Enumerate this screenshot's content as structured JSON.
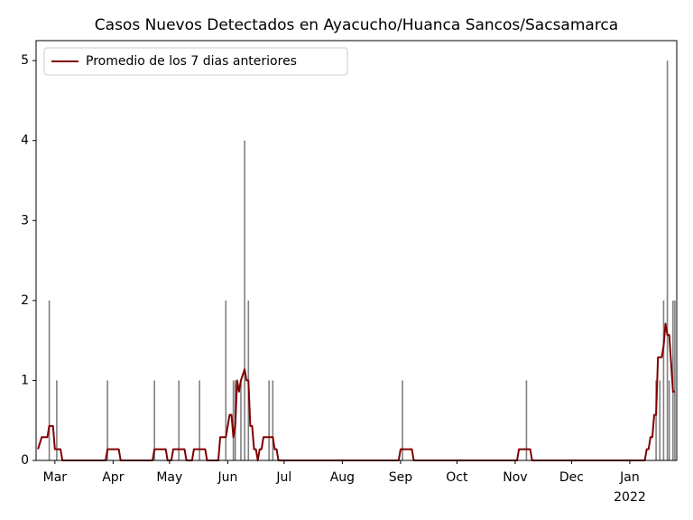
{
  "chart_data": {
    "type": "bar",
    "title": "Casos Nuevos Detectados en Ayacucho/Huanca Sancos/Sacsamarca",
    "xlim": [
      "2021-02-19",
      "2022-01-26"
    ],
    "ylim": [
      0,
      5.25
    ],
    "yticks": [
      0,
      1,
      2,
      3,
      4,
      5
    ],
    "xticks": [
      {
        "value": "2021-03-01",
        "label": "Mar"
      },
      {
        "value": "2021-04-01",
        "label": "Apr"
      },
      {
        "value": "2021-05-01",
        "label": "May"
      },
      {
        "value": "2021-06-01",
        "label": "Jun"
      },
      {
        "value": "2021-07-01",
        "label": "Jul"
      },
      {
        "value": "2021-08-01",
        "label": "Aug"
      },
      {
        "value": "2021-09-01",
        "label": "Sep"
      },
      {
        "value": "2021-10-01",
        "label": "Oct"
      },
      {
        "value": "2021-11-01",
        "label": "Nov"
      },
      {
        "value": "2021-12-01",
        "label": "Dec"
      },
      {
        "value": "2022-01-01",
        "label": "Jan",
        "sublabel": "2022"
      }
    ],
    "legend": "upper left",
    "series": [
      {
        "type": "bar",
        "color": "#808080",
        "x": [
          "2021-02-26",
          "2021-03-02",
          "2021-03-29",
          "2021-04-23",
          "2021-05-06",
          "2021-05-17",
          "2021-05-31",
          "2021-06-04",
          "2021-06-05",
          "2021-06-08",
          "2021-06-10",
          "2021-06-12",
          "2021-06-23",
          "2021-06-25",
          "2021-09-02",
          "2021-11-07",
          "2022-01-15",
          "2022-01-17",
          "2022-01-19",
          "2022-01-21",
          "2022-01-22",
          "2022-01-24",
          "2022-01-25"
        ],
        "values": [
          2,
          1,
          1,
          1,
          1,
          1,
          2,
          1,
          1,
          1,
          4,
          2,
          1,
          1,
          1,
          1,
          1,
          1,
          2,
          5,
          1,
          2,
          2
        ]
      },
      {
        "type": "line",
        "name": "Promedio de los 7 dias anteriores",
        "color": "#800000",
        "x": [
          "2021-02-20",
          "2021-02-22",
          "2021-02-25",
          "2021-02-26",
          "2021-02-28",
          "2021-03-01",
          "2021-03-04",
          "2021-03-05",
          "2021-03-28",
          "2021-03-29",
          "2021-04-04",
          "2021-04-05",
          "2021-04-22",
          "2021-04-23",
          "2021-04-29",
          "2021-04-30",
          "2021-05-02",
          "2021-05-03",
          "2021-05-09",
          "2021-05-10",
          "2021-05-13",
          "2021-05-14",
          "2021-05-20",
          "2021-05-21",
          "2021-05-27",
          "2021-05-28",
          "2021-05-31",
          "2021-06-01",
          "2021-06-02",
          "2021-06-03",
          "2021-06-04",
          "2021-06-05",
          "2021-06-06",
          "2021-06-07",
          "2021-06-08",
          "2021-06-10",
          "2021-06-11",
          "2021-06-12",
          "2021-06-13",
          "2021-06-14",
          "2021-06-15",
          "2021-06-16",
          "2021-06-17",
          "2021-06-18",
          "2021-06-19",
          "2021-06-20",
          "2021-06-25",
          "2021-06-26",
          "2021-06-27",
          "2021-06-28",
          "2021-08-31",
          "2021-09-01",
          "2021-09-07",
          "2021-09-08",
          "2021-11-02",
          "2021-11-03",
          "2021-11-09",
          "2021-11-10",
          "2022-01-09",
          "2022-01-10",
          "2022-01-11",
          "2022-01-12",
          "2022-01-13",
          "2022-01-14",
          "2022-01-15",
          "2022-01-16",
          "2022-01-18",
          "2022-01-19",
          "2022-01-20",
          "2022-01-21",
          "2022-01-22",
          "2022-01-24",
          "2022-01-25"
        ],
        "values": [
          0.14,
          0.29,
          0.29,
          0.43,
          0.43,
          0.14,
          0.14,
          0,
          0,
          0.14,
          0.14,
          0,
          0,
          0.14,
          0.14,
          0,
          0,
          0.14,
          0.14,
          0,
          0,
          0.14,
          0.14,
          0,
          0,
          0.29,
          0.29,
          0.43,
          0.57,
          0.57,
          0.29,
          0.43,
          1.0,
          0.86,
          1.0,
          1.14,
          1.0,
          1.0,
          0.43,
          0.43,
          0.14,
          0.14,
          0,
          0.14,
          0.14,
          0.29,
          0.29,
          0.14,
          0.14,
          0,
          0,
          0.14,
          0.14,
          0,
          0,
          0.14,
          0.14,
          0,
          0,
          0.14,
          0.14,
          0.29,
          0.29,
          0.57,
          0.57,
          1.29,
          1.29,
          1.43,
          1.71,
          1.57,
          1.57,
          0.86,
          0.86
        ]
      }
    ]
  }
}
